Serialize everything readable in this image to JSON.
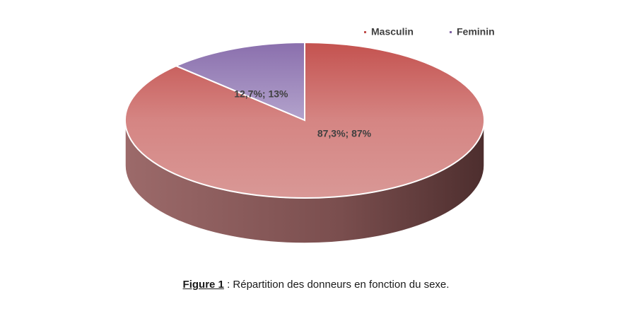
{
  "chart_data": {
    "type": "pie",
    "categories": [
      "Masculin",
      "Feminin"
    ],
    "values": [
      87.3,
      12.7
    ],
    "data_labels": [
      "87,3%; 87%",
      "12,7%; 13%"
    ],
    "colors": [
      "#c0504d",
      "#8064a2"
    ],
    "legend_position": "top-right",
    "style": "3d"
  },
  "caption": {
    "label": "Figure 1",
    "text": " : Répartition des donneurs en fonction du sexe."
  }
}
